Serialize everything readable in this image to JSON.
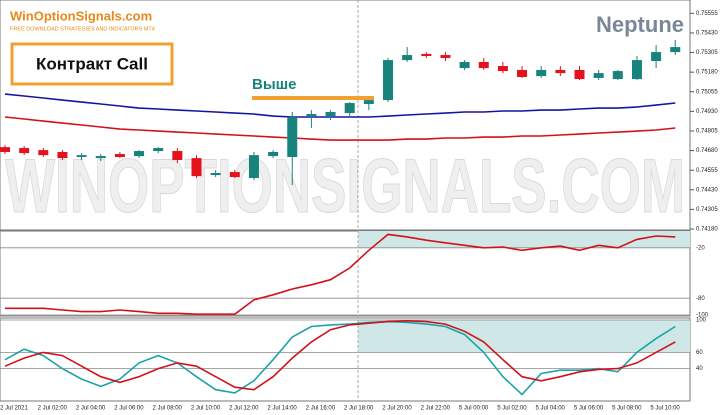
{
  "header": {
    "logo": "WinOptionSignals.com",
    "tagline": "FREE DOWNLOAD STRATEGIES AND INDICATORS MT4"
  },
  "labels": {
    "contract": "Контракт Call",
    "direction": "Выше",
    "strategy": "Neptune",
    "watermark": "WINOPTIONSIGNALS.COM"
  },
  "chart_data": [
    {
      "type": "candlestick",
      "categories": [
        "2 Jul 2021",
        null,
        "2 Jul 02:00",
        null,
        "2 Jul 04:00",
        null,
        "2 Jul 06:00",
        null,
        "2 Jul 08:00",
        null,
        "2 Jul 10:00",
        null,
        "2 Jul 12:00",
        null,
        "2 Jul 14:00",
        null,
        "2 Jul 16:00",
        null,
        "2 Jul 18:00",
        null,
        "2 Jul 20:00",
        null,
        "2 Jul 22:00",
        null,
        "5 Jul 00:00",
        null,
        "5 Jul 02:00",
        null,
        "5 Jul 04:00",
        null,
        "5 Jul 06:00",
        null,
        "5 Jul 08:00",
        null,
        "5 Jul 10:00",
        null
      ],
      "ohlc": {
        "open": [
          0.74702,
          0.74696,
          0.74683,
          0.74671,
          0.74639,
          0.74632,
          0.74658,
          0.74645,
          0.74677,
          0.74677,
          0.74632,
          0.74524,
          0.74543,
          0.74505,
          0.74645,
          0.74639,
          0.749,
          0.749,
          0.74919,
          0.74977,
          0.75002,
          0.75257,
          0.75296,
          0.75289,
          0.75206,
          0.75245,
          0.75219,
          0.75194,
          0.75155,
          0.75194,
          0.75194,
          0.75143,
          0.75136,
          0.75136,
          0.75251,
          0.75308
        ],
        "high": [
          0.74715,
          0.74709,
          0.74696,
          0.74683,
          0.74664,
          0.74658,
          0.74671,
          0.74683,
          0.74702,
          0.74696,
          0.74651,
          0.74556,
          0.74556,
          0.74671,
          0.74683,
          0.74926,
          0.74938,
          0.74938,
          0.74989,
          0.75015,
          0.7527,
          0.7534,
          0.75308,
          0.75308,
          0.75257,
          0.7527,
          0.75245,
          0.75219,
          0.75219,
          0.75219,
          0.75219,
          0.75194,
          0.75194,
          0.75283,
          0.75353,
          0.75385
        ],
        "low": [
          0.74658,
          0.74651,
          0.74639,
          0.7462,
          0.7462,
          0.74613,
          0.74632,
          0.74632,
          0.74664,
          0.746,
          0.74505,
          0.74511,
          0.74505,
          0.74492,
          0.74632,
          0.7446,
          0.74824,
          0.74875,
          0.749,
          0.74938,
          0.74989,
          0.75245,
          0.7527,
          0.75251,
          0.75194,
          0.75194,
          0.75174,
          0.75143,
          0.75143,
          0.75155,
          0.7513,
          0.7513,
          0.7513,
          0.7513,
          0.75206,
          0.75289
        ],
        "close": [
          0.74671,
          0.74664,
          0.74651,
          0.74632,
          0.74651,
          0.74645,
          0.74639,
          0.74677,
          0.74696,
          0.7462,
          0.74517,
          0.74537,
          0.74511,
          0.74651,
          0.74671,
          0.74894,
          0.74913,
          0.74926,
          0.74983,
          0.75002,
          0.75257,
          0.75289,
          0.75283,
          0.7527,
          0.75245,
          0.75206,
          0.75187,
          0.75149,
          0.75194,
          0.75174,
          0.75136,
          0.75174,
          0.75187,
          0.75257,
          0.75308,
          0.7534
        ]
      },
      "up_color": "#17837c",
      "down_color": "#e3121c",
      "overlays": [
        {
          "color": "#1515a0",
          "values": [
            0.7504,
            0.75028,
            0.75015,
            0.75002,
            0.74989,
            0.74977,
            0.74964,
            0.74951,
            0.74945,
            0.74938,
            0.74932,
            0.74926,
            0.74919,
            0.74913,
            0.749,
            0.74894,
            0.74894,
            0.74894,
            0.74894,
            0.74894,
            0.749,
            0.74907,
            0.74913,
            0.74919,
            0.74926,
            0.74926,
            0.74932,
            0.74932,
            0.74938,
            0.74938,
            0.74945,
            0.74951,
            0.74951,
            0.74958,
            0.7497,
            0.74983
          ]
        },
        {
          "color": "#d3111a",
          "values": [
            0.74894,
            0.74881,
            0.74868,
            0.74855,
            0.74843,
            0.7483,
            0.74817,
            0.74811,
            0.74804,
            0.74798,
            0.74792,
            0.74785,
            0.74779,
            0.74773,
            0.74766,
            0.7476,
            0.74753,
            0.74747,
            0.74747,
            0.74747,
            0.74747,
            0.74753,
            0.74753,
            0.7476,
            0.7476,
            0.74766,
            0.74766,
            0.74773,
            0.74773,
            0.74779,
            0.74785,
            0.74792,
            0.74798,
            0.74804,
            0.74811,
            0.74824
          ]
        }
      ],
      "ylim": [
        0.7418,
        0.7564
      ],
      "yticks": [
        0.75555,
        {
          "value": 0.7543,
          "label": "0.75430"
        },
        0.75305,
        {
          "value": 0.7518,
          "label": "0.75180"
        },
        0.75055,
        {
          "value": 0.7493,
          "label": "0.74930"
        },
        0.74805,
        {
          "value": 0.7468,
          "label": "0.74680"
        },
        0.74555,
        {
          "value": 0.7443,
          "label": "0.74430"
        },
        0.74305,
        {
          "value": 0.7418,
          "label": "0.74180"
        }
      ]
    },
    {
      "type": "line",
      "series": [
        {
          "color": "#d3111a",
          "values": [
            -92,
            -92,
            -92,
            -94,
            -96,
            -96,
            -94,
            -96,
            -98,
            -98,
            -99,
            -99,
            -99,
            -82,
            -76,
            -69,
            -64,
            -58,
            -44,
            -23,
            -4,
            -7,
            -11,
            -14,
            -17,
            -20,
            -19,
            -23,
            -20,
            -18,
            -23,
            -17,
            -20,
            -10,
            -6,
            -7
          ]
        }
      ],
      "ylim": [
        -100,
        0
      ],
      "yticks": [
        -20,
        -80,
        -100
      ],
      "zone": [
        -20,
        0
      ]
    },
    {
      "type": "line",
      "series": [
        {
          "color": "#1aa3a8",
          "values": [
            51,
            64,
            56,
            40,
            27,
            18,
            27,
            47,
            56,
            47,
            30,
            14,
            10,
            25,
            51,
            79,
            92,
            94,
            95,
            97,
            98,
            97,
            95,
            92,
            82,
            60,
            30,
            8,
            34,
            38,
            38,
            40,
            36,
            60,
            77,
            92
          ]
        },
        {
          "color": "#d3111a",
          "values": [
            43,
            53,
            60,
            56,
            43,
            30,
            23,
            30,
            40,
            47,
            43,
            30,
            17,
            14,
            30,
            53,
            73,
            88,
            94,
            96,
            98,
            99,
            98,
            95,
            86,
            73,
            51,
            30,
            25,
            30,
            36,
            39,
            40,
            47,
            60,
            73
          ]
        }
      ],
      "ylim": [
        0,
        100
      ],
      "yticks": [
        100,
        60,
        40
      ],
      "zone": [
        60,
        100
      ]
    }
  ]
}
